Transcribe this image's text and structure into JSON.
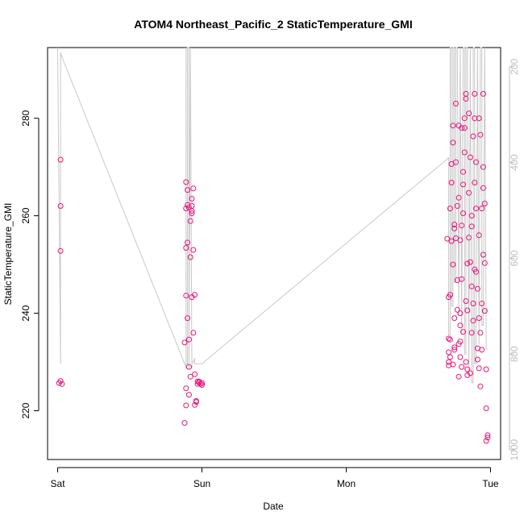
{
  "chart_data": {
    "type": "scatter",
    "title": "ATOM4 Northeast_Pacific_2 StaticTemperature_GMI",
    "xlabel": "Date",
    "ylabel": "StaticTemperature_GMI",
    "x_ticks": [
      {
        "label": "Sat",
        "value": 0
      },
      {
        "label": "Sun",
        "value": 1
      },
      {
        "label": "Mon",
        "value": 2
      },
      {
        "label": "Tue",
        "value": 3
      }
    ],
    "xlim": [
      -0.07,
      3.07
    ],
    "ylim": [
      210,
      294.5
    ],
    "y_ticks": [
      220,
      240,
      260,
      280
    ],
    "y2": {
      "range_top": 160,
      "range_bottom": 1020,
      "ticks": [
        200,
        400,
        600,
        800,
        1000
      ],
      "color": "#bdbdbd"
    },
    "point_color": "#e8157a",
    "line_color": "#c8c8c8",
    "grid": false,
    "series": [
      {
        "kind": "points",
        "x": [
          0.01,
          0.02,
          0.02,
          0.02,
          0.02,
          0.03,
          0.88,
          0.88,
          0.89,
          0.89,
          0.89,
          0.89,
          0.89,
          0.89,
          0.9,
          0.9,
          0.9,
          0.9,
          0.91,
          0.91,
          0.91,
          0.91,
          0.92,
          0.92,
          0.92,
          0.93,
          0.93,
          0.93,
          0.93,
          0.93,
          0.94,
          0.94,
          0.94,
          0.95,
          0.95,
          0.95,
          0.96,
          0.96,
          0.97,
          0.97,
          0.98,
          0.98,
          0.99,
          1.0,
          1.0,
          2.7,
          2.71,
          2.71,
          2.71,
          2.71,
          2.71,
          2.72,
          2.72,
          2.72,
          2.72,
          2.73,
          2.73,
          2.73,
          2.74,
          2.74,
          2.74,
          2.74,
          2.75,
          2.75,
          2.75,
          2.75,
          2.75,
          2.76,
          2.76,
          2.76,
          2.77,
          2.77,
          2.77,
          2.78,
          2.78,
          2.78,
          2.78,
          2.79,
          2.79,
          2.79,
          2.79,
          2.79,
          2.8,
          2.8,
          2.8,
          2.8,
          2.81,
          2.81,
          2.81,
          2.81,
          2.82,
          2.82,
          2.82,
          2.83,
          2.83,
          2.83,
          2.83,
          2.84,
          2.84,
          2.84,
          2.84,
          2.85,
          2.85,
          2.85,
          2.86,
          2.86,
          2.86,
          2.87,
          2.87,
          2.87,
          2.87,
          2.88,
          2.88,
          2.88,
          2.89,
          2.89,
          2.89,
          2.89,
          2.9,
          2.9,
          2.9,
          2.91,
          2.91,
          2.91,
          2.92,
          2.92,
          2.92,
          2.92,
          2.93,
          2.93,
          2.93,
          2.94,
          2.94,
          2.94,
          2.95,
          2.95,
          2.95,
          2.95,
          2.96,
          2.96,
          2.96,
          2.97,
          2.97,
          2.97,
          2.98,
          2.98
        ],
        "y": [
          225.7,
          271.5,
          262,
          252.8,
          226.1,
          225.5,
          217.5,
          234,
          243.6,
          253.4,
          261.5,
          266.9,
          221.1,
          224.6,
          254.5,
          262.2,
          265.3,
          239,
          229,
          223.3,
          261.7,
          234.6,
          227,
          258.9,
          251.5,
          243.3,
          262,
          261,
          260.5,
          263.5,
          265.6,
          253,
          236,
          221.2,
          243.8,
          227.5,
          222,
          221.8,
          226,
          225.5,
          225.8,
          226,
          225.5,
          225.3,
          225.7,
          255.3,
          243.3,
          229.3,
          232,
          234.8,
          230,
          243.8,
          261.5,
          234.6,
          231,
          270.6,
          266.8,
          254.8,
          250,
          229.5,
          278.5,
          275,
          232.5,
          239,
          258.2,
          257.4,
          233,
          283,
          271,
          255.4,
          240.7,
          246.8,
          262,
          233.7,
          227,
          278.5,
          263.7,
          240,
          234.2,
          237.5,
          231,
          255,
          229,
          278,
          247,
          258,
          269,
          266.4,
          260.5,
          236.2,
          280,
          278,
          273,
          285,
          284,
          230,
          242.5,
          227.3,
          250.2,
          228.5,
          240.6,
          264.7,
          255.5,
          281,
          272,
          250.5,
          227.7,
          260,
          257.8,
          236,
          245.5,
          276.3,
          238.5,
          242,
          280,
          266.8,
          249,
          285,
          271,
          261.5,
          248.5,
          232.8,
          230.5,
          245,
          228.7,
          239,
          256,
          280,
          276.6,
          225,
          236,
          232.5,
          261.5,
          242,
          252,
          285,
          270,
          265.7,
          262.5,
          250.3,
          240.5,
          220.5,
          213.8,
          228.5,
          214.5,
          215
        ]
      },
      {
        "kind": "line",
        "x": [
          0,
          0.02,
          0.02,
          0.02,
          0.03,
          0.88,
          0.89,
          0.89,
          0.89,
          0.89,
          0.9,
          0.9,
          0.91,
          0.91,
          0.91,
          0.92,
          0.92,
          0.93,
          0.93,
          0.95,
          0.95,
          0.96,
          1.0,
          2.71,
          2.71,
          2.72,
          2.72,
          2.73,
          2.73,
          2.74,
          2.74,
          2.75,
          2.75,
          2.76,
          2.76,
          2.77,
          2.78,
          2.78,
          2.79,
          2.79,
          2.8,
          2.8,
          2.81,
          2.82,
          2.82,
          2.83,
          2.83,
          2.84,
          2.85,
          2.85,
          2.86,
          2.86,
          2.87,
          2.88,
          2.88,
          2.89,
          2.89,
          2.9,
          2.91,
          2.91,
          2.92,
          2.92,
          2.93,
          2.94,
          2.94,
          2.95,
          2.96,
          2.96,
          2.97,
          2.98
        ],
        "y2": [
          160,
          820,
          820,
          170,
          180,
          820,
          830,
          160,
          160,
          820,
          820,
          160,
          160,
          820,
          830,
          160,
          160,
          830,
          820,
          810,
          820,
          820,
          820,
          390,
          760,
          760,
          160,
          160,
          700,
          700,
          160,
          160,
          650,
          650,
          160,
          160,
          720,
          720,
          160,
          160,
          760,
          760,
          160,
          160,
          800,
          800,
          160,
          160,
          840,
          840,
          160,
          160,
          860,
          860,
          160,
          160,
          820,
          820,
          160,
          160,
          780,
          780,
          160,
          160,
          740,
          740,
          160,
          160,
          790,
          790
        ]
      }
    ]
  }
}
